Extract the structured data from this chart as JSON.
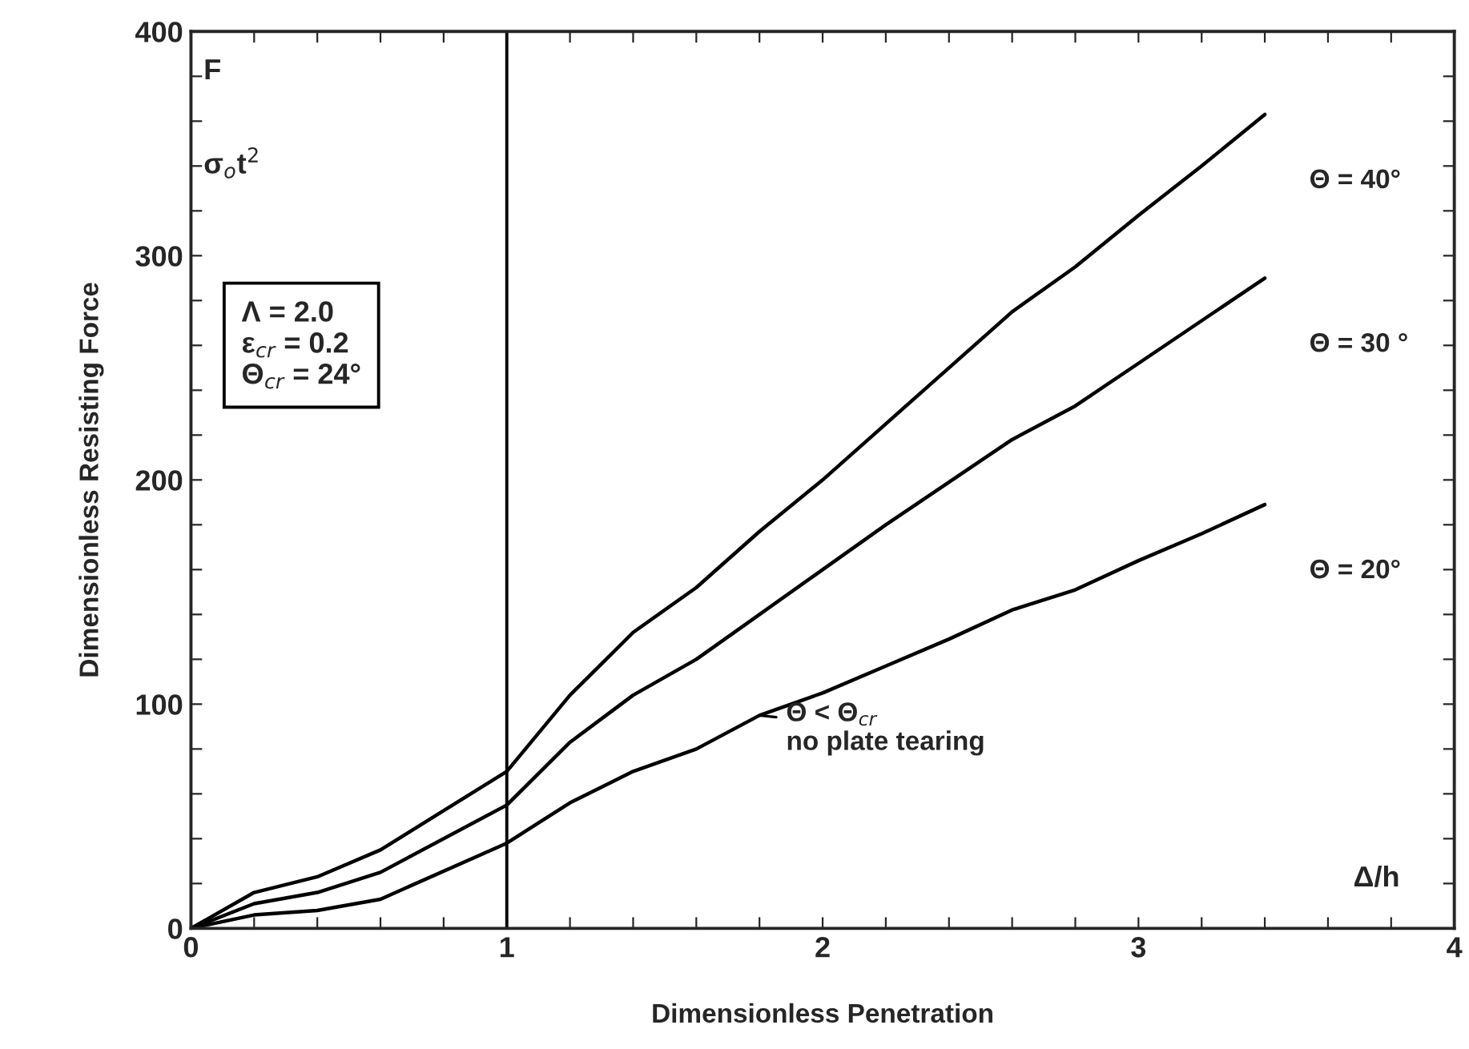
{
  "chart_data": {
    "type": "line",
    "xlabel": "Dimensionless Penetration",
    "ylabel": "Dimensionless Resisting Force",
    "x": [
      0,
      0.2,
      0.4,
      0.6,
      1.0,
      1.2,
      1.4,
      1.6,
      1.8,
      2.0,
      2.2,
      2.4,
      2.6,
      2.8,
      3.0,
      3.2,
      3.4
    ],
    "series": [
      {
        "name": "Θ = 40°",
        "color": "#000000",
        "values": [
          0,
          16,
          23,
          35,
          70,
          104,
          132,
          152,
          177,
          200,
          225,
          250,
          275,
          295,
          318,
          340,
          363
        ]
      },
      {
        "name": "Θ = 30 °",
        "color": "#000000",
        "values": [
          0,
          11,
          16,
          25,
          55,
          83,
          104,
          120,
          140,
          160,
          180,
          199,
          218,
          233,
          252,
          271,
          290
        ]
      },
      {
        "name": "Θ = 20°",
        "color": "#000000",
        "values": [
          0,
          6,
          8,
          13,
          38,
          56,
          70,
          80,
          95,
          105,
          117,
          129,
          142,
          151,
          164,
          176,
          189
        ]
      }
    ],
    "xlim": [
      0,
      4
    ],
    "ylim": [
      0,
      400
    ],
    "xticks": [
      0,
      {
        "value": 0.2,
        "label": null
      },
      {
        "value": 0.4,
        "label": null
      },
      {
        "value": 0.6,
        "label": null
      },
      {
        "value": 0.8,
        "label": null
      },
      1,
      {
        "value": 1.2,
        "label": null
      },
      {
        "value": 1.4,
        "label": null
      },
      {
        "value": 1.6,
        "label": null
      },
      {
        "value": 1.8,
        "label": null
      },
      2,
      {
        "value": 2.2,
        "label": null
      },
      {
        "value": 2.4,
        "label": null
      },
      {
        "value": 2.6,
        "label": null
      },
      {
        "value": 2.8,
        "label": null
      },
      3,
      {
        "value": 3.2,
        "label": null
      },
      {
        "value": 3.4,
        "label": null
      },
      {
        "value": 3.6,
        "label": null
      },
      {
        "value": 3.8,
        "label": null
      },
      4
    ],
    "yticks": [
      0,
      {
        "value": 20,
        "label": null
      },
      {
        "value": 40,
        "label": null
      },
      {
        "value": 60,
        "label": null
      },
      {
        "value": 80,
        "label": null
      },
      100,
      {
        "value": 120,
        "label": null
      },
      {
        "value": 140,
        "label": null
      },
      {
        "value": 160,
        "label": null
      },
      {
        "value": 180,
        "label": null
      },
      200,
      {
        "value": 220,
        "label": null
      },
      {
        "value": 240,
        "label": null
      },
      {
        "value": 260,
        "label": null
      },
      {
        "value": 280,
        "label": null
      },
      300,
      {
        "value": 320,
        "label": null
      },
      {
        "value": 340,
        "label": null
      },
      {
        "value": 360,
        "label": null
      },
      {
        "value": 380,
        "label": null
      },
      400
    ],
    "ref_lines": [
      {
        "axis": "x",
        "value": 1,
        "color": "#000000"
      }
    ],
    "annotations": [
      "F",
      "σ$_{o}$t$^{2}$",
      "Λ = 2.0\nε$_{cr}$ = 0.2\nΘ$_{cr}$ = 24°",
      {
        "text": "Θ < Θ$_{cr}$\nno plate tearing",
        "x": 1.8,
        "y": 95
      },
      "Δ/h"
    ],
    "grid": false,
    "legend": false,
    "marker": "none",
    "line_style": "solid"
  }
}
